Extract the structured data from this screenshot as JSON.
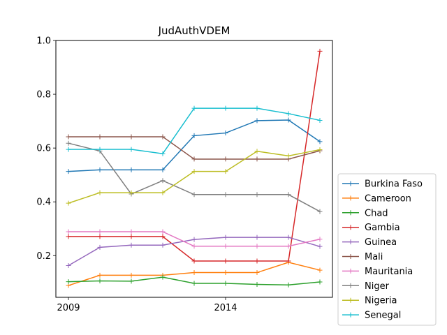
{
  "chart_data": {
    "type": "line",
    "title": "JudAuthVDEM",
    "xlabel": "",
    "ylabel": "",
    "x": [
      2009,
      2010,
      2011,
      2012,
      2013,
      2014,
      2015,
      2016,
      2017
    ],
    "x_ticks": [
      2009,
      2014
    ],
    "x_tick_labels": [
      "2009",
      "2014"
    ],
    "y_ticks": [
      0.2,
      0.4,
      0.6,
      0.8,
      1.0
    ],
    "y_tick_labels": [
      "0.2",
      "0.4",
      "0.6",
      "0.8",
      "1.0"
    ],
    "xlim": [
      2008.6,
      2017.4
    ],
    "ylim": [
      0.045,
      1.0
    ],
    "grid": false,
    "legend_placement": "outside-lower-right",
    "series": [
      {
        "name": "Burkina Faso",
        "color": "#1f77b4",
        "values": [
          0.513,
          0.519,
          0.519,
          0.519,
          0.646,
          0.656,
          0.702,
          0.704,
          0.624
        ]
      },
      {
        "name": "Cameroon",
        "color": "#ff7f0e",
        "values": [
          0.089,
          0.127,
          0.127,
          0.127,
          0.137,
          0.137,
          0.137,
          0.175,
          0.146
        ]
      },
      {
        "name": "Chad",
        "color": "#2ca02c",
        "values": [
          0.103,
          0.106,
          0.105,
          0.12,
          0.097,
          0.097,
          0.093,
          0.091,
          0.102
        ]
      },
      {
        "name": "Gambia",
        "color": "#d62728",
        "values": [
          0.271,
          0.271,
          0.271,
          0.271,
          0.18,
          0.18,
          0.18,
          0.18,
          0.96
        ]
      },
      {
        "name": "Guinea",
        "color": "#9467bd",
        "values": [
          0.163,
          0.231,
          0.239,
          0.239,
          0.26,
          0.268,
          0.268,
          0.268,
          0.234
        ]
      },
      {
        "name": "Mali",
        "color": "#8c564b",
        "values": [
          0.642,
          0.642,
          0.642,
          0.642,
          0.559,
          0.559,
          0.559,
          0.559,
          0.59
        ]
      },
      {
        "name": "Mauritania",
        "color": "#e377c2",
        "values": [
          0.289,
          0.289,
          0.289,
          0.289,
          0.235,
          0.235,
          0.235,
          0.235,
          0.261
        ]
      },
      {
        "name": "Niger",
        "color": "#7f7f7f",
        "values": [
          0.618,
          0.589,
          0.429,
          0.479,
          0.427,
          0.427,
          0.427,
          0.427,
          0.364
        ]
      },
      {
        "name": "Nigeria",
        "color": "#bcbd22",
        "values": [
          0.395,
          0.434,
          0.434,
          0.434,
          0.513,
          0.513,
          0.588,
          0.571,
          0.594
        ]
      },
      {
        "name": "Senegal",
        "color": "#17becf",
        "values": [
          0.595,
          0.595,
          0.595,
          0.579,
          0.748,
          0.748,
          0.748,
          0.728,
          0.703
        ]
      }
    ]
  }
}
